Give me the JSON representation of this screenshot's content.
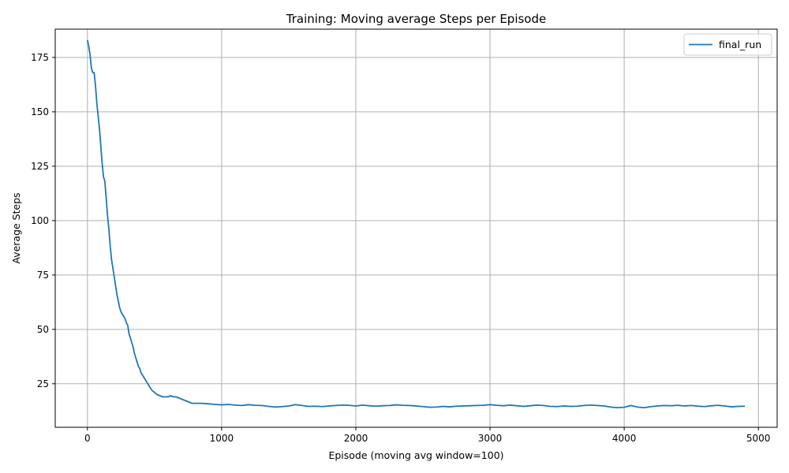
{
  "chart_data": {
    "type": "line",
    "title": "Training: Moving average Steps per Episode",
    "xlabel": "Episode (moving avg window=100)",
    "ylabel": "Average Steps",
    "xlim": [
      -240,
      5140
    ],
    "ylim": [
      5,
      188
    ],
    "xticks": [
      0,
      1000,
      2000,
      3000,
      4000,
      5000
    ],
    "yticks": [
      25,
      50,
      75,
      100,
      125,
      150,
      175
    ],
    "grid": true,
    "legend_position": "top-right",
    "series": [
      {
        "name": "final_run",
        "color": "#1f77b4",
        "x": [
          0,
          10,
          20,
          30,
          40,
          50,
          60,
          70,
          80,
          90,
          100,
          110,
          120,
          130,
          140,
          150,
          160,
          170,
          180,
          190,
          200,
          210,
          220,
          230,
          240,
          250,
          260,
          270,
          280,
          290,
          300,
          310,
          320,
          330,
          340,
          350,
          360,
          370,
          380,
          390,
          400,
          410,
          420,
          430,
          440,
          450,
          460,
          470,
          480,
          490,
          500,
          520,
          540,
          560,
          580,
          600,
          620,
          640,
          660,
          680,
          700,
          720,
          740,
          760,
          780,
          800,
          850,
          900,
          950,
          1000,
          1050,
          1100,
          1150,
          1200,
          1250,
          1300,
          1350,
          1400,
          1450,
          1500,
          1550,
          1600,
          1650,
          1700,
          1750,
          1800,
          1850,
          1900,
          1950,
          2000,
          2050,
          2100,
          2150,
          2200,
          2250,
          2300,
          2350,
          2400,
          2450,
          2500,
          2550,
          2600,
          2650,
          2700,
          2750,
          2800,
          2850,
          2900,
          2950,
          3000,
          3050,
          3100,
          3150,
          3200,
          3250,
          3300,
          3350,
          3400,
          3450,
          3500,
          3550,
          3600,
          3650,
          3700,
          3750,
          3800,
          3850,
          3900,
          3950,
          4000,
          4050,
          4100,
          4150,
          4200,
          4250,
          4300,
          4350,
          4400,
          4450,
          4500,
          4550,
          4600,
          4650,
          4700,
          4750,
          4800,
          4850,
          4900
        ],
        "y": [
          183,
          180,
          176,
          170,
          168,
          168,
          162,
          154,
          148,
          142,
          134,
          126,
          120,
          118,
          110,
          102,
          96,
          88,
          82,
          78,
          74,
          70,
          66,
          63,
          60,
          58,
          57,
          56,
          55,
          53,
          52,
          48,
          46,
          44,
          42,
          39,
          37,
          35,
          33,
          32,
          30,
          29,
          28,
          27,
          26,
          25,
          24,
          23,
          22,
          21.5,
          21,
          20,
          19.5,
          19,
          19,
          19,
          19.5,
          19,
          19,
          18.5,
          18,
          17.5,
          17,
          16.5,
          16,
          16,
          16,
          15.8,
          15.5,
          15.3,
          15.5,
          15.2,
          15,
          15.4,
          15.1,
          15,
          14.6,
          14.3,
          14.5,
          14.8,
          15.4,
          15,
          14.6,
          14.7,
          14.5,
          14.8,
          15,
          15.2,
          15.1,
          14.8,
          15.2,
          14.9,
          14.7,
          14.9,
          15,
          15.3,
          15.1,
          15,
          14.8,
          14.5,
          14.2,
          14.3,
          14.6,
          14.4,
          14.7,
          14.8,
          14.9,
          15,
          15.1,
          15.4,
          15.1,
          14.9,
          15.2,
          14.9,
          14.6,
          14.9,
          15.2,
          15,
          14.6,
          14.5,
          14.8,
          14.6,
          14.7,
          15,
          15.2,
          15,
          14.8,
          14.3,
          14,
          14.2,
          15,
          14.3,
          14,
          14.5,
          14.8,
          15,
          14.9,
          15.1,
          14.8,
          15,
          14.7,
          14.5,
          14.9,
          15.1,
          14.8,
          14.4,
          14.6,
          14.7
        ]
      }
    ]
  }
}
